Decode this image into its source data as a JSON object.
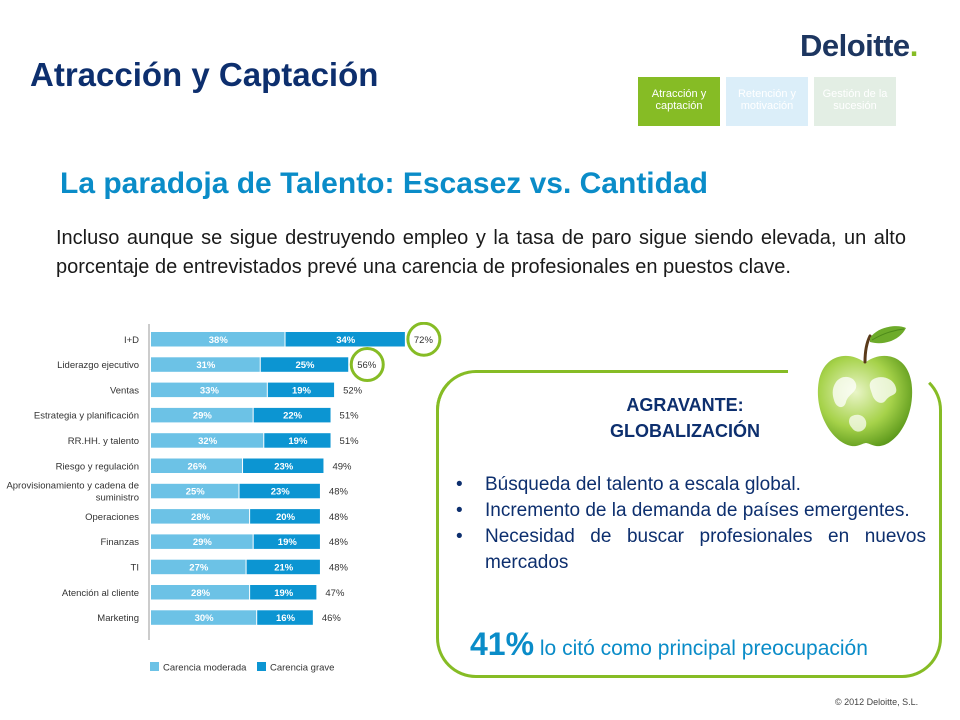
{
  "logo": {
    "text": "Deloitte",
    "dot": "."
  },
  "title": "Atracción y Captación",
  "tabs": [
    {
      "label": "Atracción y captación",
      "active": true
    },
    {
      "label": "Retención y motivación",
      "active": false
    },
    {
      "label": "Gestión de la sucesión",
      "active": false
    }
  ],
  "subtitle": "La paradoja de Talento: Escasez vs. Cantidad",
  "intro": "Incluso aunque se sigue destruyendo empleo y la tasa de paro sigue siendo elevada, un alto porcentaje de entrevistados prevé una carencia de profesionales en puestos clave.",
  "chart_data": {
    "type": "bar",
    "stacked": true,
    "orientation": "horizontal",
    "categories": [
      "I+D",
      "Liderazgo ejecutivo",
      "Ventas",
      "Estrategia y planificación",
      "RR.HH. y talento",
      "Riesgo y regulación",
      "Aprovisionamiento y cadena de suministro",
      "Operaciones",
      "Finanzas",
      "TI",
      "Atención al cliente",
      "Marketing"
    ],
    "category_lines": [
      [
        "I+D"
      ],
      [
        "Liderazgo ejecutivo"
      ],
      [
        "Ventas"
      ],
      [
        "Estrategia y planificación"
      ],
      [
        "RR.HH. y talento"
      ],
      [
        "Riesgo y regulación"
      ],
      [
        "Aprovisionamiento y cadena de",
        "suministro"
      ],
      [
        "Operaciones"
      ],
      [
        "Finanzas"
      ],
      [
        "TI"
      ],
      [
        "Atención al cliente"
      ],
      [
        "Marketing"
      ]
    ],
    "series": [
      {
        "name": "Carencia moderada",
        "color": "#6cc2e6",
        "values": [
          38,
          31,
          33,
          29,
          32,
          26,
          25,
          28,
          29,
          27,
          28,
          30
        ]
      },
      {
        "name": "Carencia grave",
        "color": "#0c95d2",
        "values": [
          34,
          25,
          19,
          22,
          19,
          23,
          23,
          20,
          19,
          21,
          19,
          16
        ]
      }
    ],
    "totals": [
      72,
      56,
      52,
      51,
      51,
      49,
      48,
      48,
      48,
      48,
      47,
      46
    ],
    "highlighted": [
      "I+D",
      "Liderazgo ejecutivo"
    ],
    "highlight_color": "#86bc25",
    "legend": "bottom-left",
    "xlim": [
      0,
      100
    ]
  },
  "panel": {
    "heading_1": "AGRAVANTE:",
    "heading_2": "GLOBALIZACIÓN",
    "bullets": [
      "Búsqueda del talento a escala global.",
      "Incremento de la demanda de países emergentes.",
      "Necesidad de buscar profesionales en nuevos mercados"
    ],
    "stat_value": "41%",
    "stat_text": "lo citó como principal preocupación"
  },
  "apple_icon": "globe-apple-icon",
  "copyright": "© 2012 Deloitte, S.L."
}
